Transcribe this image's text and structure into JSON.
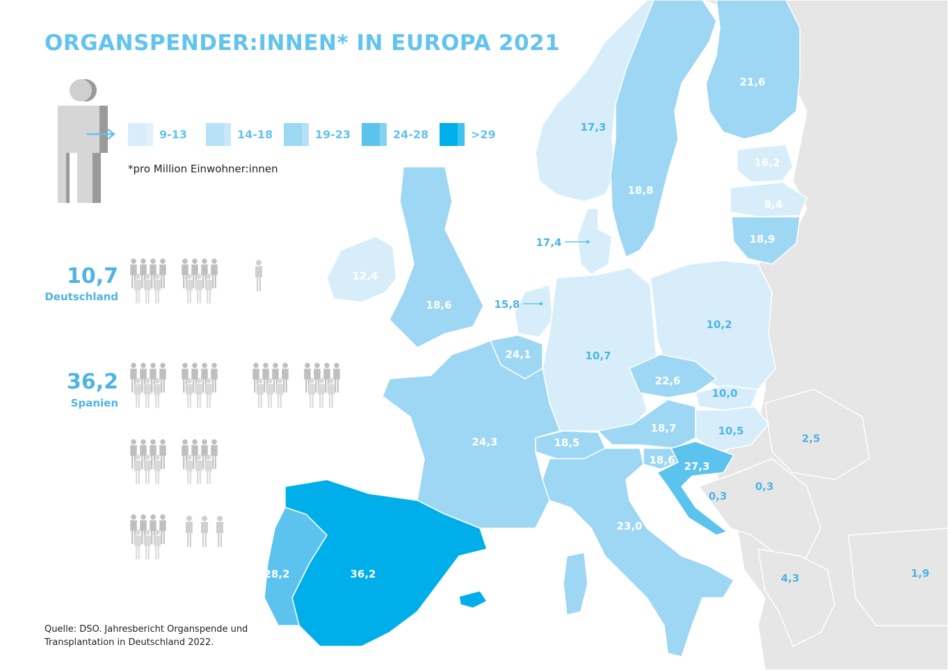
{
  "title": "ORGANSPENDER:INNEN* IN EUROPA 2021",
  "legend": {
    "items": [
      {
        "label": "9-13",
        "color": "#d7eefa"
      },
      {
        "label": "14-18",
        "color": "#b6e1f7"
      },
      {
        "label": "19-23",
        "color": "#9dd7f4"
      },
      {
        "label": "24-28",
        "color": "#5cc2ee"
      },
      {
        "label": ">29",
        "color": "#00aeea"
      }
    ],
    "note": "*pro Million Einwohner:innen"
  },
  "comparison": [
    {
      "value": "10,7",
      "country": "Deutschland"
    },
    {
      "value": "36,2",
      "country": "Spanien"
    }
  ],
  "source_line1": "Quelle: DSO. Jahresbericht Organspende und",
  "source_line2": "Transplantation in Deutschland 2022.",
  "map_values": {
    "norway": "17,3",
    "sweden": "18,8",
    "finland": "21,6",
    "estonia": "16,2",
    "latvia": "8,4",
    "lithuania": "18,9",
    "denmark": "17,4",
    "ireland": "12,4",
    "uk": "18,6",
    "netherlands": "15,8",
    "belgium": "24,1",
    "germany": "10,7",
    "poland": "10,2",
    "czechia": "22,6",
    "slovakia": "10,0",
    "hungary": "10,5",
    "austria": "18,7",
    "switzerland": "18,5",
    "slovenia": "18,6",
    "croatia": "27,3",
    "bosnia": "0,3",
    "serbia": "0,3",
    "romania": "2,5",
    "france": "24,3",
    "italy": "23,0",
    "spain": "36,2",
    "portugal": "28,2",
    "greece": "4,3",
    "turkey": "1,9"
  },
  "colors": {
    "accent": "#62c3ee",
    "non_member": "#e6e6e6",
    "person_grey": "#c8c8c8"
  }
}
